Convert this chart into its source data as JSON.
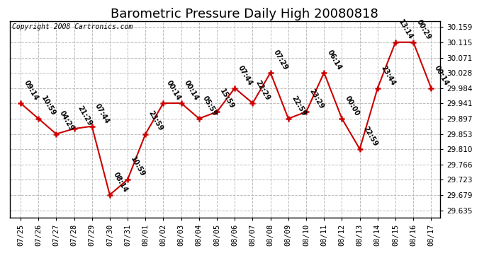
{
  "title": "Barometric Pressure Daily High 20080818",
  "copyright": "Copyright 2008 Cartronics.com",
  "x_labels": [
    "07/25",
    "07/26",
    "07/27",
    "07/28",
    "07/29",
    "07/30",
    "07/31",
    "08/01",
    "08/02",
    "08/03",
    "08/04",
    "08/05",
    "08/06",
    "08/07",
    "08/08",
    "08/09",
    "08/10",
    "08/11",
    "08/12",
    "08/13",
    "08/14",
    "08/15",
    "08/16",
    "08/17"
  ],
  "y_values": [
    29.941,
    29.897,
    29.853,
    29.868,
    29.875,
    29.679,
    29.723,
    29.853,
    29.941,
    29.941,
    29.897,
    29.916,
    29.984,
    29.941,
    30.028,
    29.897,
    29.916,
    30.028,
    29.897,
    29.81,
    29.984,
    30.115,
    30.115,
    29.984
  ],
  "annotations": [
    "09:14",
    "10:59",
    "04:29",
    "21:29",
    "07:44",
    "08:14",
    "10:59",
    "23:59",
    "00:14",
    "00:14",
    "05:59",
    "15:59",
    "07:44",
    "22:29",
    "07:29",
    "22:59",
    "23:29",
    "06:14",
    "00:00",
    "22:59",
    "23:44",
    "13:14",
    "00:29",
    "00:14"
  ],
  "y_ticks": [
    29.635,
    29.679,
    29.723,
    29.766,
    29.81,
    29.853,
    29.897,
    29.941,
    29.984,
    30.028,
    30.071,
    30.115,
    30.159
  ],
  "ylim": [
    29.615,
    30.175
  ],
  "xlim": [
    -0.6,
    23.5
  ],
  "line_color": "#cc0000",
  "marker_color": "#cc0000",
  "background_color": "#ffffff",
  "grid_color": "#bbbbbb",
  "title_fontsize": 13,
  "annotation_fontsize": 7,
  "copyright_fontsize": 7,
  "tick_fontsize": 7.5,
  "annot_rotation": -60
}
